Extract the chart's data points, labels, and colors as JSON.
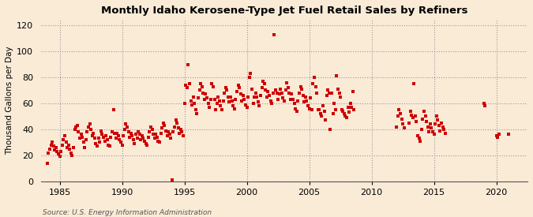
{
  "title": "Monthly Idaho Kerosene-Type Jet Fuel Retail Sales by Refiners",
  "ylabel": "Thousand Gallons per Day",
  "source": "Source: U.S. Energy Information Administration",
  "background_color": "#faebd7",
  "plot_bg_color": "#faebd7",
  "marker_color": "#cc0000",
  "marker_size": 7,
  "xlim": [
    1983.5,
    2022.5
  ],
  "ylim": [
    0,
    125
  ],
  "yticks": [
    0,
    20,
    40,
    60,
    80,
    100,
    120
  ],
  "xticks": [
    1985,
    1990,
    1995,
    2000,
    2005,
    2010,
    2015,
    2020
  ],
  "data": [
    [
      1984.0,
      14.0
    ],
    [
      1984.1,
      22.0
    ],
    [
      1984.2,
      25.0
    ],
    [
      1984.3,
      28.0
    ],
    [
      1984.4,
      30.0
    ],
    [
      1984.5,
      27.0
    ],
    [
      1984.6,
      24.0
    ],
    [
      1984.7,
      26.0
    ],
    [
      1984.8,
      23.0
    ],
    [
      1984.9,
      21.0
    ],
    [
      1985.0,
      19.0
    ],
    [
      1985.1,
      23.0
    ],
    [
      1985.2,
      28.0
    ],
    [
      1985.3,
      32.0
    ],
    [
      1985.4,
      35.0
    ],
    [
      1985.5,
      30.0
    ],
    [
      1985.6,
      26.0
    ],
    [
      1985.7,
      28.0
    ],
    [
      1985.8,
      25.0
    ],
    [
      1985.9,
      22.0
    ],
    [
      1986.0,
      20.0
    ],
    [
      1986.1,
      26.0
    ],
    [
      1986.2,
      40.0
    ],
    [
      1986.3,
      42.0
    ],
    [
      1986.4,
      43.0
    ],
    [
      1986.5,
      38.0
    ],
    [
      1986.6,
      33.0
    ],
    [
      1986.7,
      36.0
    ],
    [
      1986.8,
      34.0
    ],
    [
      1986.9,
      30.0
    ],
    [
      1987.0,
      26.0
    ],
    [
      1987.1,
      32.0
    ],
    [
      1987.2,
      38.0
    ],
    [
      1987.3,
      42.0
    ],
    [
      1987.4,
      44.0
    ],
    [
      1987.5,
      40.0
    ],
    [
      1987.6,
      35.0
    ],
    [
      1987.7,
      37.0
    ],
    [
      1987.8,
      33.0
    ],
    [
      1987.9,
      29.0
    ],
    [
      1988.0,
      27.0
    ],
    [
      1988.1,
      33.0
    ],
    [
      1988.2,
      30.0
    ],
    [
      1988.3,
      39.0
    ],
    [
      1988.4,
      36.0
    ],
    [
      1988.5,
      34.0
    ],
    [
      1988.6,
      31.0
    ],
    [
      1988.7,
      35.0
    ],
    [
      1988.8,
      32.0
    ],
    [
      1988.9,
      28.0
    ],
    [
      1989.0,
      27.0
    ],
    [
      1989.1,
      34.0
    ],
    [
      1989.2,
      38.0
    ],
    [
      1989.3,
      55.0
    ],
    [
      1989.4,
      37.0
    ],
    [
      1989.5,
      33.0
    ],
    [
      1989.6,
      37.0
    ],
    [
      1989.7,
      35.0
    ],
    [
      1989.8,
      32.0
    ],
    [
      1989.9,
      30.0
    ],
    [
      1990.0,
      28.0
    ],
    [
      1990.1,
      35.0
    ],
    [
      1990.2,
      40.0
    ],
    [
      1990.3,
      44.0
    ],
    [
      1990.4,
      42.0
    ],
    [
      1990.5,
      38.0
    ],
    [
      1990.6,
      34.0
    ],
    [
      1990.7,
      37.0
    ],
    [
      1990.8,
      35.0
    ],
    [
      1990.9,
      32.0
    ],
    [
      1991.0,
      29.0
    ],
    [
      1991.1,
      36.0
    ],
    [
      1991.2,
      33.0
    ],
    [
      1991.3,
      38.0
    ],
    [
      1991.4,
      36.0
    ],
    [
      1991.5,
      32.0
    ],
    [
      1991.6,
      35.0
    ],
    [
      1991.7,
      33.0
    ],
    [
      1991.8,
      31.0
    ],
    [
      1991.9,
      29.0
    ],
    [
      1992.0,
      28.0
    ],
    [
      1992.1,
      34.0
    ],
    [
      1992.2,
      38.0
    ],
    [
      1992.3,
      42.0
    ],
    [
      1992.4,
      40.0
    ],
    [
      1992.5,
      36.0
    ],
    [
      1992.6,
      33.0
    ],
    [
      1992.7,
      36.0
    ],
    [
      1992.8,
      34.0
    ],
    [
      1992.9,
      31.0
    ],
    [
      1993.0,
      30.0
    ],
    [
      1993.1,
      37.0
    ],
    [
      1993.2,
      41.0
    ],
    [
      1993.3,
      45.0
    ],
    [
      1993.4,
      43.0
    ],
    [
      1993.5,
      39.0
    ],
    [
      1993.6,
      35.0
    ],
    [
      1993.7,
      38.0
    ],
    [
      1993.8,
      36.0
    ],
    [
      1993.9,
      33.0
    ],
    [
      1994.0,
      1.0
    ],
    [
      1994.1,
      38.0
    ],
    [
      1994.2,
      42.0
    ],
    [
      1994.3,
      47.0
    ],
    [
      1994.4,
      45.0
    ],
    [
      1994.5,
      41.0
    ],
    [
      1994.6,
      37.0
    ],
    [
      1994.7,
      40.0
    ],
    [
      1994.8,
      38.0
    ],
    [
      1994.9,
      35.0
    ],
    [
      1995.0,
      60.0
    ],
    [
      1995.1,
      74.0
    ],
    [
      1995.2,
      72.0
    ],
    [
      1995.3,
      90.0
    ],
    [
      1995.4,
      75.0
    ],
    [
      1995.5,
      62.0
    ],
    [
      1995.6,
      59.0
    ],
    [
      1995.7,
      65.0
    ],
    [
      1995.8,
      60.0
    ],
    [
      1995.9,
      55.0
    ],
    [
      1996.0,
      52.0
    ],
    [
      1996.1,
      64.0
    ],
    [
      1996.2,
      70.0
    ],
    [
      1996.3,
      75.0
    ],
    [
      1996.4,
      73.0
    ],
    [
      1996.5,
      68.0
    ],
    [
      1996.6,
      63.0
    ],
    [
      1996.7,
      67.0
    ],
    [
      1996.8,
      64.0
    ],
    [
      1996.9,
      60.0
    ],
    [
      1997.0,
      57.0
    ],
    [
      1997.1,
      63.0
    ],
    [
      1997.2,
      75.0
    ],
    [
      1997.3,
      73.0
    ],
    [
      1997.4,
      63.0
    ],
    [
      1997.5,
      55.0
    ],
    [
      1997.6,
      60.0
    ],
    [
      1997.7,
      65.0
    ],
    [
      1997.8,
      62.0
    ],
    [
      1997.9,
      58.0
    ],
    [
      1998.0,
      55.0
    ],
    [
      1998.1,
      62.0
    ],
    [
      1998.2,
      68.0
    ],
    [
      1998.3,
      72.0
    ],
    [
      1998.4,
      70.0
    ],
    [
      1998.5,
      65.0
    ],
    [
      1998.6,
      61.0
    ],
    [
      1998.7,
      65.0
    ],
    [
      1998.8,
      62.0
    ],
    [
      1998.9,
      58.0
    ],
    [
      1999.0,
      56.0
    ],
    [
      1999.1,
      63.0
    ],
    [
      1999.2,
      69.0
    ],
    [
      1999.3,
      74.0
    ],
    [
      1999.4,
      72.0
    ],
    [
      1999.5,
      67.0
    ],
    [
      1999.6,
      62.0
    ],
    [
      1999.7,
      66.0
    ],
    [
      1999.8,
      63.0
    ],
    [
      1999.9,
      59.0
    ],
    [
      2000.0,
      57.0
    ],
    [
      2000.1,
      65.0
    ],
    [
      2000.2,
      80.0
    ],
    [
      2000.3,
      83.0
    ],
    [
      2000.4,
      71.0
    ],
    [
      2000.5,
      60.0
    ],
    [
      2000.6,
      65.0
    ],
    [
      2000.7,
      68.0
    ],
    [
      2000.8,
      65.0
    ],
    [
      2000.9,
      61.0
    ],
    [
      2001.0,
      58.0
    ],
    [
      2001.1,
      66.0
    ],
    [
      2001.2,
      72.0
    ],
    [
      2001.3,
      77.0
    ],
    [
      2001.4,
      75.0
    ],
    [
      2001.5,
      70.0
    ],
    [
      2001.6,
      65.0
    ],
    [
      2001.7,
      69.0
    ],
    [
      2001.8,
      66.0
    ],
    [
      2001.9,
      62.0
    ],
    [
      2002.0,
      60.0
    ],
    [
      2002.1,
      68.0
    ],
    [
      2002.2,
      113.0
    ],
    [
      2002.3,
      70.0
    ],
    [
      2002.4,
      68.0
    ],
    [
      2002.5,
      63.0
    ],
    [
      2002.6,
      67.0
    ],
    [
      2002.7,
      71.0
    ],
    [
      2002.8,
      68.0
    ],
    [
      2002.9,
      64.0
    ],
    [
      2003.0,
      62.0
    ],
    [
      2003.1,
      70.0
    ],
    [
      2003.2,
      76.0
    ],
    [
      2003.3,
      72.0
    ],
    [
      2003.4,
      68.0
    ],
    [
      2003.5,
      63.0
    ],
    [
      2003.6,
      67.0
    ],
    [
      2003.7,
      63.0
    ],
    [
      2003.8,
      60.0
    ],
    [
      2003.9,
      56.0
    ],
    [
      2004.0,
      54.0
    ],
    [
      2004.1,
      62.0
    ],
    [
      2004.2,
      68.0
    ],
    [
      2004.3,
      73.0
    ],
    [
      2004.4,
      71.0
    ],
    [
      2004.5,
      66.0
    ],
    [
      2004.6,
      61.0
    ],
    [
      2004.7,
      65.0
    ],
    [
      2004.8,
      62.0
    ],
    [
      2004.9,
      58.0
    ],
    [
      2005.0,
      56.0
    ],
    [
      2005.1,
      64.0
    ],
    [
      2005.2,
      55.0
    ],
    [
      2005.3,
      75.0
    ],
    [
      2005.4,
      80.0
    ],
    [
      2005.5,
      73.0
    ],
    [
      2005.6,
      68.0
    ],
    [
      2005.7,
      55.0
    ],
    [
      2005.8,
      55.0
    ],
    [
      2005.9,
      52.0
    ],
    [
      2006.0,
      50.0
    ],
    [
      2006.1,
      58.0
    ],
    [
      2006.2,
      54.0
    ],
    [
      2006.3,
      47.0
    ],
    [
      2006.4,
      66.0
    ],
    [
      2006.5,
      70.0
    ],
    [
      2006.6,
      68.0
    ],
    [
      2006.7,
      40.0
    ],
    [
      2006.8,
      68.0
    ],
    [
      2006.9,
      52.0
    ],
    [
      2007.0,
      60.0
    ],
    [
      2007.1,
      55.0
    ],
    [
      2007.2,
      81.0
    ],
    [
      2007.3,
      71.0
    ],
    [
      2007.4,
      68.0
    ],
    [
      2007.5,
      65.0
    ],
    [
      2007.6,
      55.0
    ],
    [
      2007.7,
      54.0
    ],
    [
      2007.8,
      52.0
    ],
    [
      2007.9,
      50.0
    ],
    [
      2008.0,
      49.0
    ],
    [
      2008.1,
      57.0
    ],
    [
      2008.2,
      53.0
    ],
    [
      2008.3,
      60.0
    ],
    [
      2008.4,
      57.0
    ],
    [
      2008.5,
      69.0
    ],
    [
      2008.6,
      55.0
    ],
    [
      2012.0,
      42.0
    ],
    [
      2012.1,
      50.0
    ],
    [
      2012.2,
      55.0
    ],
    [
      2012.3,
      52.0
    ],
    [
      2012.4,
      48.0
    ],
    [
      2012.5,
      44.0
    ],
    [
      2012.6,
      41.0
    ],
    [
      2013.0,
      45.0
    ],
    [
      2013.1,
      54.0
    ],
    [
      2013.2,
      51.0
    ],
    [
      2013.3,
      49.0
    ],
    [
      2013.4,
      75.0
    ],
    [
      2013.5,
      50.0
    ],
    [
      2013.6,
      46.0
    ],
    [
      2013.7,
      35.0
    ],
    [
      2013.8,
      33.0
    ],
    [
      2013.9,
      31.0
    ],
    [
      2014.0,
      40.0
    ],
    [
      2014.1,
      48.0
    ],
    [
      2014.2,
      54.0
    ],
    [
      2014.3,
      50.0
    ],
    [
      2014.4,
      46.0
    ],
    [
      2014.5,
      42.0
    ],
    [
      2014.6,
      38.0
    ],
    [
      2014.7,
      44.0
    ],
    [
      2014.8,
      41.0
    ],
    [
      2014.9,
      38.0
    ],
    [
      2015.0,
      36.0
    ],
    [
      2015.1,
      44.0
    ],
    [
      2015.2,
      50.0
    ],
    [
      2015.3,
      47.0
    ],
    [
      2015.4,
      43.0
    ],
    [
      2015.5,
      39.0
    ],
    [
      2015.6,
      45.0
    ],
    [
      2015.7,
      42.0
    ],
    [
      2015.8,
      40.0
    ],
    [
      2015.9,
      37.0
    ],
    [
      2019.0,
      60.0
    ],
    [
      2019.1,
      58.0
    ],
    [
      2020.0,
      35.0
    ],
    [
      2020.1,
      34.0
    ],
    [
      2020.2,
      36.0
    ],
    [
      2021.0,
      36.0
    ]
  ]
}
